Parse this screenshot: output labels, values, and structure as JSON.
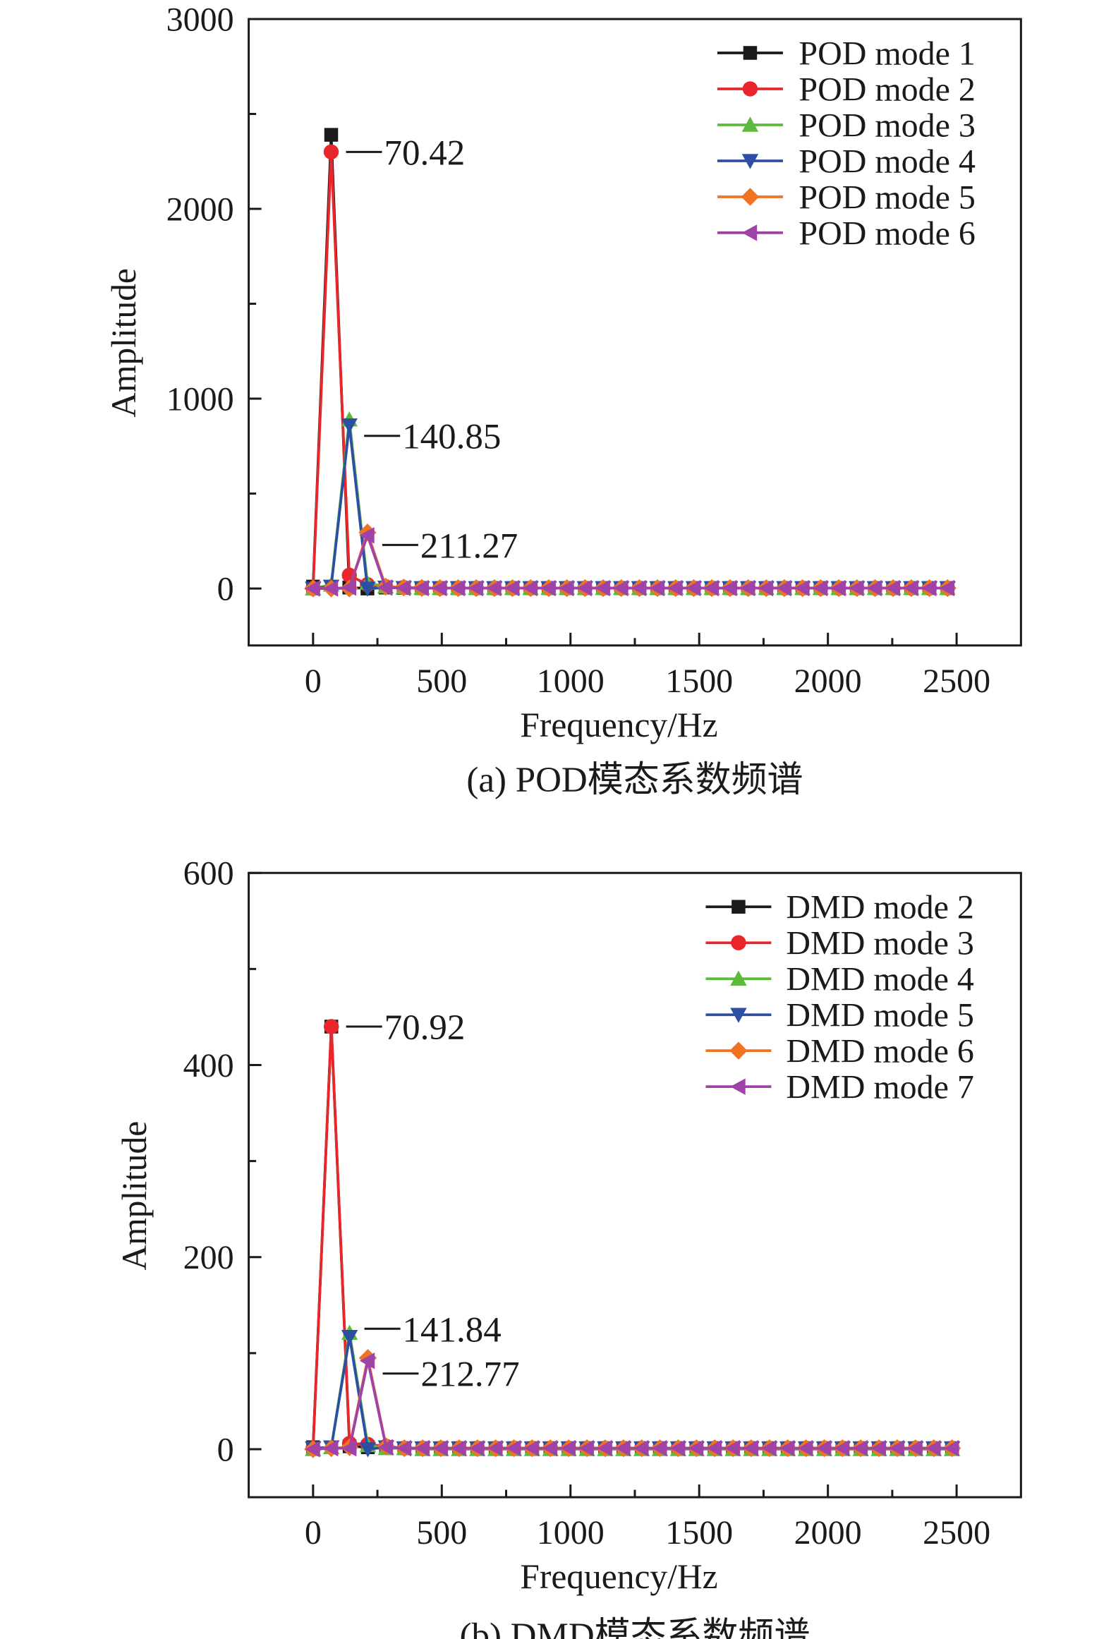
{
  "chart_data": [
    {
      "type": "line",
      "caption": "(a) POD模态系数频谱",
      "xlabel": "Frequency/Hz",
      "ylabel": "Amplitude",
      "xlim": [
        -250,
        2750
      ],
      "ylim": [
        -300,
        3000
      ],
      "xticks": [
        0,
        500,
        1000,
        1500,
        2000,
        2500
      ],
      "yticks": [
        0,
        1000,
        2000,
        3000
      ],
      "grid": false,
      "legend_position": "top-right",
      "x": [
        0,
        70.4,
        140.8,
        211.3,
        281.7,
        352.1,
        422.5,
        492.9,
        563.4,
        633.8,
        704.2,
        774.6,
        845.0,
        915.5,
        985.9,
        1056.3,
        1126.7,
        1197.1,
        1267.6,
        1338.0,
        1408.4,
        1478.8,
        1549.2,
        1619.7,
        1690.1,
        1760.5,
        1830.9,
        1901.3,
        1971.8,
        2042.2,
        2112.6,
        2183.0,
        2253.4,
        2323.9,
        2394.3,
        2464.7
      ],
      "series": [
        {
          "name": "POD mode 1",
          "color": "#1a1a1a",
          "marker": "square",
          "values": [
            10,
            2390,
            5,
            0,
            5,
            3,
            2,
            2,
            2,
            2,
            2,
            2,
            2,
            2,
            2,
            2,
            2,
            2,
            2,
            2,
            2,
            2,
            2,
            2,
            2,
            2,
            2,
            2,
            2,
            2,
            2,
            2,
            2,
            2,
            2,
            2
          ]
        },
        {
          "name": "POD mode 2",
          "color": "#e8262b",
          "marker": "circle",
          "values": [
            0,
            2300,
            70,
            20,
            10,
            5,
            3,
            2,
            2,
            2,
            2,
            2,
            2,
            2,
            2,
            2,
            2,
            2,
            2,
            2,
            2,
            2,
            2,
            2,
            2,
            2,
            2,
            2,
            2,
            2,
            2,
            2,
            2,
            2,
            2,
            2
          ]
        },
        {
          "name": "POD mode 3",
          "color": "#5cba3c",
          "marker": "triangle-up",
          "values": [
            0,
            20,
            890,
            30,
            10,
            5,
            3,
            2,
            2,
            2,
            2,
            2,
            2,
            2,
            2,
            2,
            2,
            2,
            2,
            2,
            2,
            2,
            2,
            2,
            2,
            2,
            2,
            2,
            2,
            2,
            2,
            2,
            2,
            2,
            2,
            2
          ]
        },
        {
          "name": "POD mode 4",
          "color": "#2c4fa3",
          "marker": "triangle-down",
          "values": [
            0,
            10,
            860,
            0,
            5,
            3,
            2,
            2,
            2,
            2,
            2,
            2,
            2,
            2,
            2,
            2,
            2,
            2,
            2,
            2,
            2,
            2,
            2,
            2,
            2,
            2,
            2,
            2,
            2,
            2,
            2,
            2,
            2,
            2,
            2,
            2
          ]
        },
        {
          "name": "POD mode 5",
          "color": "#f07322",
          "marker": "diamond",
          "values": [
            0,
            0,
            0,
            295,
            10,
            5,
            3,
            2,
            2,
            2,
            2,
            2,
            2,
            2,
            2,
            2,
            2,
            2,
            2,
            2,
            2,
            2,
            2,
            2,
            2,
            2,
            2,
            2,
            2,
            2,
            2,
            2,
            2,
            2,
            2,
            2
          ]
        },
        {
          "name": "POD mode 6",
          "color": "#a043a8",
          "marker": "triangle-left",
          "values": [
            0,
            0,
            5,
            280,
            5,
            3,
            2,
            2,
            2,
            2,
            2,
            2,
            2,
            2,
            2,
            2,
            2,
            2,
            2,
            2,
            2,
            2,
            2,
            2,
            2,
            2,
            2,
            2,
            2,
            2,
            2,
            2,
            2,
            2,
            2,
            2
          ]
        }
      ],
      "annotations": [
        {
          "text": "70.42",
          "x": 70.42,
          "y": 2300
        },
        {
          "text": "140.85",
          "x": 140.85,
          "y": 860
        },
        {
          "text": "211.27",
          "x": 211.27,
          "y": 285
        }
      ]
    },
    {
      "type": "line",
      "caption": "(b) DMD模态系数频谱",
      "xlabel": "Frequency/Hz",
      "ylabel": "Amplitude",
      "xlim": [
        -250,
        2750
      ],
      "ylim": [
        -50,
        600
      ],
      "xticks": [
        0,
        500,
        1000,
        1500,
        2000,
        2500
      ],
      "yticks": [
        0,
        200,
        400,
        600
      ],
      "grid": false,
      "legend_position": "top-right",
      "x": [
        0,
        70.9,
        141.8,
        212.8,
        283.7,
        354.6,
        425.5,
        496.4,
        567.4,
        638.3,
        709.2,
        780.1,
        851.0,
        922.0,
        992.9,
        1063.8,
        1134.7,
        1205.6,
        1276.6,
        1347.5,
        1418.4,
        1489.3,
        1560.2,
        1631.2,
        1702.1,
        1773.0,
        1843.9,
        1914.8,
        1985.8,
        2056.7,
        2127.6,
        2198.5,
        2269.4,
        2340.4,
        2411.3,
        2482.2
      ],
      "series": [
        {
          "name": "DMD mode 2",
          "color": "#1a1a1a",
          "marker": "square",
          "values": [
            2,
            440,
            3,
            2,
            2,
            1,
            1,
            1,
            1,
            1,
            1,
            1,
            1,
            1,
            1,
            1,
            1,
            1,
            1,
            1,
            1,
            1,
            1,
            1,
            1,
            1,
            1,
            1,
            1,
            1,
            1,
            1,
            1,
            1,
            1,
            1
          ]
        },
        {
          "name": "DMD mode 3",
          "color": "#e8262b",
          "marker": "circle",
          "values": [
            1,
            440,
            6,
            5,
            3,
            1,
            1,
            1,
            1,
            1,
            1,
            1,
            1,
            1,
            1,
            1,
            1,
            1,
            1,
            1,
            1,
            1,
            1,
            1,
            1,
            1,
            1,
            1,
            1,
            1,
            1,
            1,
            1,
            1,
            1,
            1
          ]
        },
        {
          "name": "DMD mode 4",
          "color": "#5cba3c",
          "marker": "triangle-up",
          "values": [
            0,
            2,
            121,
            4,
            1,
            1,
            0,
            0,
            0,
            0,
            0,
            0,
            0,
            0,
            0,
            0,
            0,
            0,
            0,
            0,
            0,
            0,
            0,
            0,
            0,
            0,
            0,
            0,
            0,
            0,
            0,
            0,
            0,
            0,
            0,
            0
          ]
        },
        {
          "name": "DMD mode 5",
          "color": "#2c4fa3",
          "marker": "triangle-down",
          "values": [
            1,
            2,
            117,
            0,
            2,
            1,
            1,
            1,
            1,
            1,
            1,
            1,
            1,
            1,
            1,
            1,
            1,
            1,
            1,
            1,
            1,
            1,
            1,
            1,
            1,
            1,
            1,
            1,
            1,
            1,
            1,
            1,
            1,
            1,
            1,
            1
          ]
        },
        {
          "name": "DMD mode 6",
          "color": "#f07322",
          "marker": "diamond",
          "values": [
            0,
            1,
            2,
            95,
            3,
            1,
            1,
            1,
            1,
            1,
            1,
            1,
            1,
            1,
            1,
            1,
            1,
            1,
            1,
            1,
            1,
            1,
            1,
            1,
            1,
            1,
            1,
            1,
            1,
            1,
            1,
            1,
            1,
            1,
            1,
            1
          ]
        },
        {
          "name": "DMD mode 7",
          "color": "#a043a8",
          "marker": "triangle-left",
          "values": [
            0,
            1,
            1,
            92,
            2,
            1,
            1,
            1,
            1,
            1,
            1,
            1,
            1,
            1,
            1,
            1,
            1,
            1,
            1,
            1,
            1,
            1,
            1,
            1,
            1,
            1,
            1,
            1,
            1,
            1,
            1,
            1,
            1,
            1,
            1,
            1
          ]
        }
      ],
      "annotations": [
        {
          "text": "141.84",
          "x": 141.84,
          "y": 121
        },
        {
          "text": "212.77",
          "x": 212.77,
          "y": 92
        },
        {
          "text": "70.92",
          "x": 70.92,
          "y": 440
        }
      ]
    }
  ]
}
